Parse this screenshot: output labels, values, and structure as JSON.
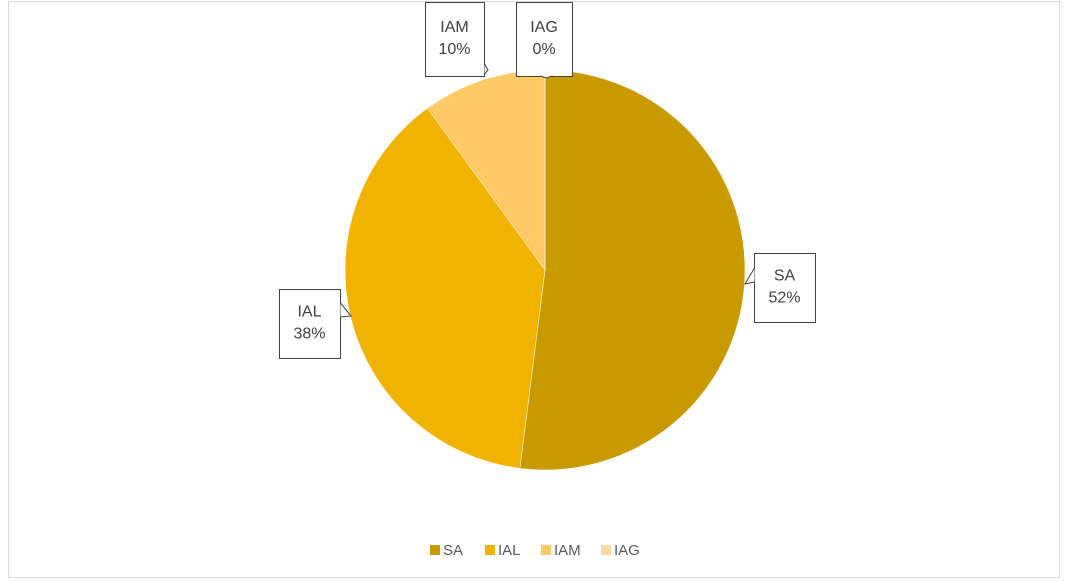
{
  "chart_data": {
    "type": "pie",
    "categories": [
      "SA",
      "IAL",
      "IAM",
      "IAG"
    ],
    "values": [
      52,
      38,
      10,
      0
    ],
    "value_labels": [
      "52%",
      "38%",
      "10%",
      "0%"
    ],
    "colors": [
      "#c99a00",
      "#f0b400",
      "#ffc966",
      "#ffd9a0"
    ],
    "legend": "bottom"
  }
}
